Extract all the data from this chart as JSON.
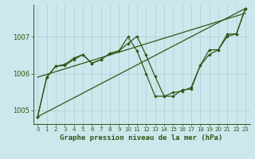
{
  "xlabel": "Graphe pression niveau de la mer (hPa)",
  "background_color": "#cce8ed",
  "grid_color": "#aacfd6",
  "line_color": "#2d5916",
  "ylim": [
    1004.62,
    1007.88
  ],
  "xlim": [
    -0.5,
    23.5
  ],
  "yticks": [
    1005,
    1006,
    1007
  ],
  "xticks": [
    0,
    1,
    2,
    3,
    4,
    5,
    6,
    7,
    8,
    9,
    10,
    11,
    12,
    13,
    14,
    15,
    16,
    17,
    18,
    19,
    20,
    21,
    22,
    23
  ],
  "line1_x": [
    0,
    23
  ],
  "line1_y": [
    1004.82,
    1007.78
  ],
  "line2_x": [
    0,
    23
  ],
  "line2_y": [
    1005.9,
    1007.65
  ],
  "zz1_x": [
    0,
    1,
    2,
    3,
    4,
    5,
    6,
    7,
    8,
    9,
    10,
    11,
    12,
    13,
    14,
    15,
    16,
    17,
    18,
    19,
    20,
    21,
    22,
    23
  ],
  "zz1_y": [
    1004.82,
    1005.9,
    1006.2,
    1006.25,
    1006.42,
    1006.52,
    1006.28,
    1006.38,
    1006.55,
    1006.62,
    1007.0,
    1006.62,
    1006.0,
    1005.38,
    1005.38,
    1005.48,
    1005.52,
    1005.62,
    1006.22,
    1006.52,
    1006.65,
    1007.02,
    1007.08,
    1007.78
  ],
  "zz2_x": [
    0,
    1,
    2,
    3,
    4,
    5,
    6,
    7,
    8,
    9,
    10,
    11,
    12,
    13,
    14,
    15,
    16,
    17,
    18,
    19,
    20,
    21,
    22,
    23
  ],
  "zz2_y": [
    1004.82,
    1005.9,
    1006.2,
    1006.22,
    1006.38,
    1006.52,
    1006.28,
    1006.38,
    1006.55,
    1006.62,
    1006.82,
    1007.02,
    1006.5,
    1005.92,
    1005.38,
    1005.38,
    1005.55,
    1005.58,
    1006.22,
    1006.65,
    1006.65,
    1007.08,
    1007.08,
    1007.78
  ],
  "xlabel_fontsize": 6.5,
  "ytick_fontsize": 6,
  "xtick_fontsize": 5
}
